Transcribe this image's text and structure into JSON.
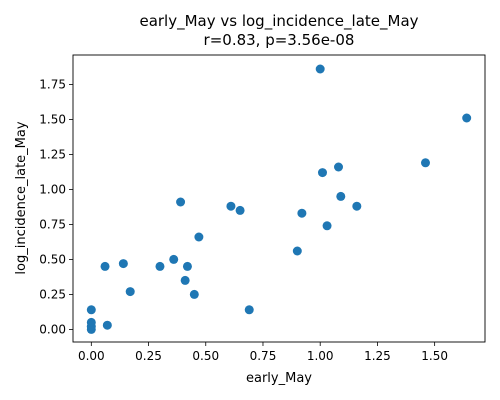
{
  "chart_data": {
    "type": "scatter",
    "title": "early_May vs log_incidence_late_May",
    "subtitle": "r=0.83, p=3.56e-08",
    "xlabel": "early_May",
    "ylabel": "log_incidence_late_May",
    "xlim": [
      -0.08,
      1.72
    ],
    "ylim": [
      -0.09,
      1.96
    ],
    "xticks": [
      0.0,
      0.25,
      0.5,
      0.75,
      1.0,
      1.25,
      1.5
    ],
    "xtick_labels": [
      "0.00",
      "0.25",
      "0.50",
      "0.75",
      "1.00",
      "1.25",
      "1.50"
    ],
    "yticks": [
      0.0,
      0.25,
      0.5,
      0.75,
      1.0,
      1.25,
      1.5,
      1.75
    ],
    "ytick_labels": [
      "0.00",
      "0.25",
      "0.50",
      "0.75",
      "1.00",
      "1.25",
      "1.50",
      "1.75"
    ],
    "grid": false,
    "marker_color": "#1f77b4",
    "points": [
      {
        "x": 0.0,
        "y": 0.0
      },
      {
        "x": 0.0,
        "y": 0.02
      },
      {
        "x": 0.0,
        "y": 0.05
      },
      {
        "x": 0.0,
        "y": 0.14
      },
      {
        "x": 0.07,
        "y": 0.03
      },
      {
        "x": 0.06,
        "y": 0.45
      },
      {
        "x": 0.14,
        "y": 0.47
      },
      {
        "x": 0.17,
        "y": 0.27
      },
      {
        "x": 0.3,
        "y": 0.45
      },
      {
        "x": 0.36,
        "y": 0.5
      },
      {
        "x": 0.39,
        "y": 0.91
      },
      {
        "x": 0.41,
        "y": 0.35
      },
      {
        "x": 0.42,
        "y": 0.45
      },
      {
        "x": 0.45,
        "y": 0.25
      },
      {
        "x": 0.47,
        "y": 0.66
      },
      {
        "x": 0.61,
        "y": 0.88
      },
      {
        "x": 0.65,
        "y": 0.85
      },
      {
        "x": 0.69,
        "y": 0.14
      },
      {
        "x": 0.9,
        "y": 0.56
      },
      {
        "x": 0.92,
        "y": 0.83
      },
      {
        "x": 1.0,
        "y": 1.86
      },
      {
        "x": 1.01,
        "y": 1.12
      },
      {
        "x": 1.03,
        "y": 0.74
      },
      {
        "x": 1.08,
        "y": 1.16
      },
      {
        "x": 1.09,
        "y": 0.95
      },
      {
        "x": 1.16,
        "y": 0.88
      },
      {
        "x": 1.46,
        "y": 1.19
      },
      {
        "x": 1.64,
        "y": 1.51
      }
    ]
  }
}
